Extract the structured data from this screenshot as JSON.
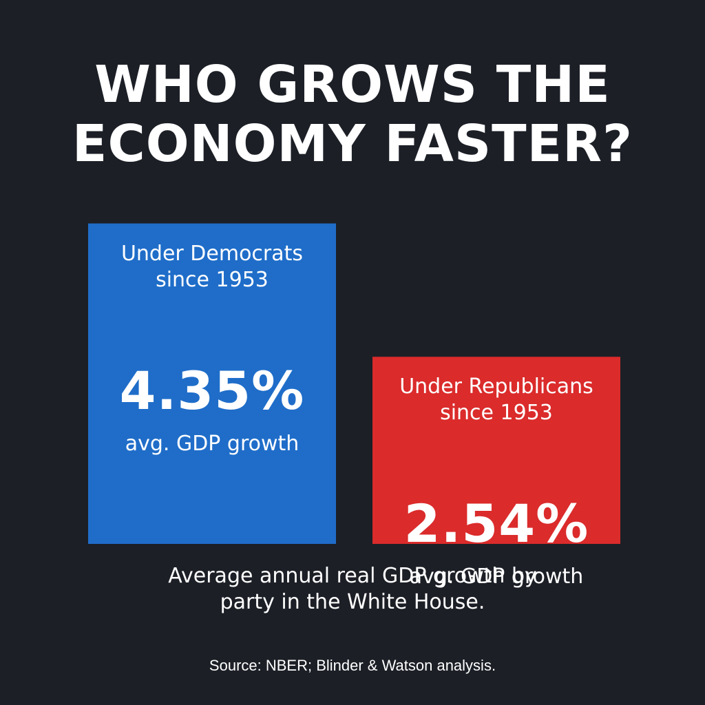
{
  "title_lines": [
    "WHO GROWS THE",
    "ECONOMY FASTER?"
  ],
  "chart_data": {
    "type": "bar",
    "categories": [
      "Under Democrats since 1953",
      "Under Republicans since 1953"
    ],
    "values": [
      4.35,
      2.54
    ],
    "bars": [
      {
        "label_lines": [
          "Under Democrats",
          "since 1953"
        ],
        "value": 4.35,
        "value_text": "4.35%",
        "sublabel": "avg. GDP growth",
        "color": "#1f6dc9"
      },
      {
        "label_lines": [
          "Under Republicans",
          "since 1953"
        ],
        "value": 2.54,
        "value_text": "2.54%",
        "sublabel": "avg. GDP growth",
        "color": "#db2b2b"
      }
    ]
  },
  "caption_lines": [
    "Average annual real GDP growth by",
    "party in the White House."
  ],
  "source": "Source: NBER; Blinder & Watson analysis.",
  "colors": {
    "background": "#1c1f26",
    "democrat": "#1f6dc9",
    "republican": "#db2b2b",
    "text": "#ffffff"
  }
}
